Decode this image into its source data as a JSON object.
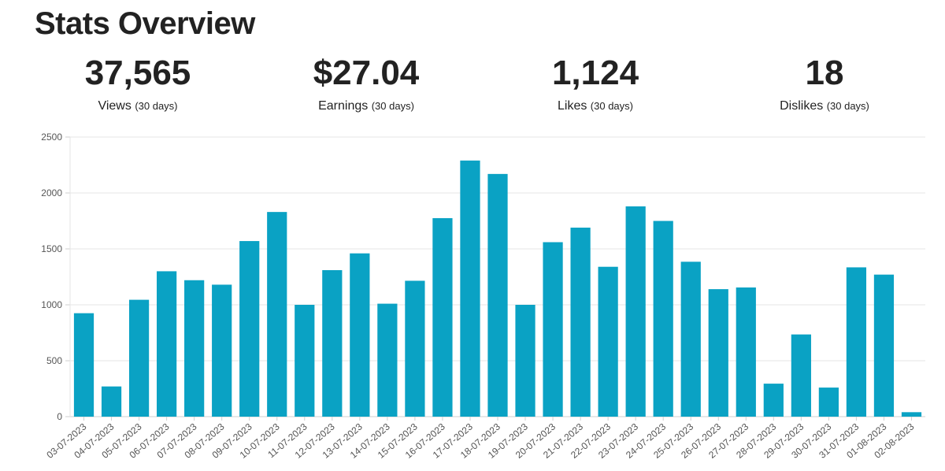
{
  "page_title": "Stats Overview",
  "stats": [
    {
      "value": "37,565",
      "label": "Views",
      "period": "(30 days)"
    },
    {
      "value": "$27.04",
      "label": "Earnings",
      "period": "(30 days)"
    },
    {
      "value": "1,124",
      "label": "Likes",
      "period": "(30 days)"
    },
    {
      "value": "18",
      "label": "Dislikes",
      "period": "(30 days)"
    }
  ],
  "chart_data": {
    "type": "bar",
    "title": "",
    "xlabel": "",
    "ylabel": "",
    "ylim": [
      0,
      2500
    ],
    "yticks": [
      0,
      500,
      1000,
      1500,
      2000,
      2500
    ],
    "grid": true,
    "bar_color": "#0aa2c4",
    "categories": [
      "03-07-2023",
      "04-07-2023",
      "05-07-2023",
      "06-07-2023",
      "07-07-2023",
      "08-07-2023",
      "09-07-2023",
      "10-07-2023",
      "11-07-2023",
      "12-07-2023",
      "13-07-2023",
      "14-07-2023",
      "15-07-2023",
      "16-07-2023",
      "17-07-2023",
      "18-07-2023",
      "19-07-2023",
      "20-07-2023",
      "21-07-2023",
      "22-07-2023",
      "23-07-2023",
      "24-07-2023",
      "25-07-2023",
      "26-07-2023",
      "27-07-2023",
      "28-07-2023",
      "29-07-2023",
      "30-07-2023",
      "31-07-2023",
      "01-08-2023",
      "02-08-2023"
    ],
    "values": [
      925,
      270,
      1045,
      1300,
      1220,
      1180,
      1570,
      1830,
      1000,
      1310,
      1460,
      1010,
      1215,
      1775,
      2290,
      2170,
      1000,
      1560,
      1690,
      1340,
      1880,
      1750,
      1385,
      1140,
      1155,
      295,
      735,
      260,
      1335,
      1270,
      40
    ]
  }
}
